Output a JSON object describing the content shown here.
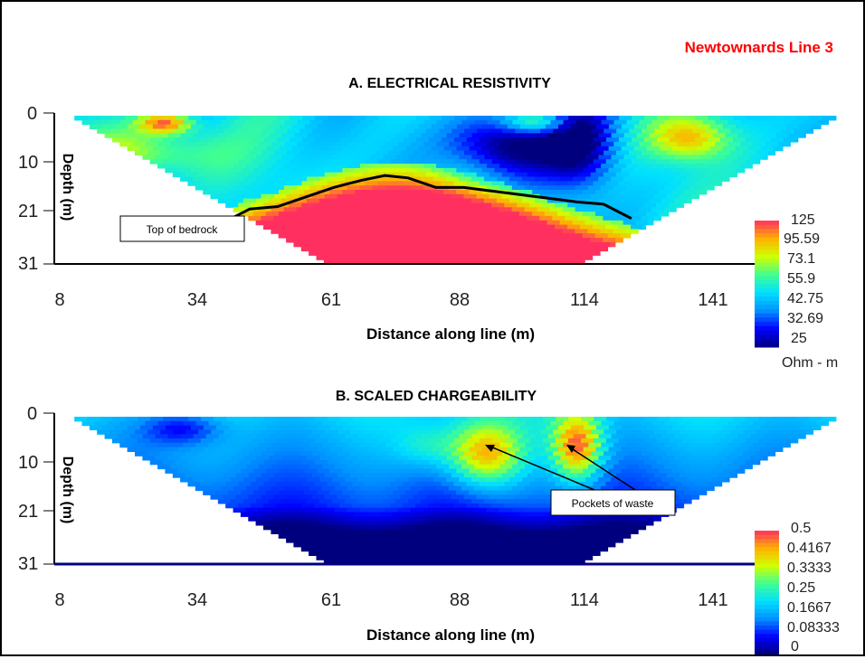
{
  "header": {
    "site_title": "Newtownards  Line 3",
    "site_title_color": "#ff0000"
  },
  "chart_data": [
    {
      "type": "heatmap",
      "title": "A.   ELECTRICAL RESISTIVITY",
      "xlabel": "Distance along line (m)",
      "ylabel": "Depth (m)",
      "x_ticks": [
        "8",
        "34",
        "61",
        "88",
        "114",
        "141"
      ],
      "y_ticks": [
        "0",
        "10",
        "21",
        "31"
      ],
      "xlim": [
        8,
        160
      ],
      "ylim": [
        0,
        31
      ],
      "scale_labels": [
        "125",
        "95.59",
        "73.1",
        "55.9",
        "42.75",
        "32.69",
        "25"
      ],
      "scale_unit": "Ohm - m",
      "annotations": [
        {
          "text": "Top of bedrock",
          "target": [
            46,
            21
          ]
        }
      ],
      "bedrock_line": [
        [
          46,
          21.5
        ],
        [
          50,
          19.5
        ],
        [
          56,
          19
        ],
        [
          62,
          17
        ],
        [
          68,
          15
        ],
        [
          74,
          13.5
        ],
        [
          79,
          12.5
        ],
        [
          84,
          13
        ],
        [
          90,
          15
        ],
        [
          96,
          15
        ],
        [
          104,
          16
        ],
        [
          112,
          17
        ],
        [
          120,
          18
        ],
        [
          126,
          18.5
        ],
        [
          132,
          21.5
        ]
      ]
    },
    {
      "type": "heatmap",
      "title": "B.   SCALED CHARGEABILITY",
      "xlabel": "Distance along line (m)",
      "ylabel": "Depth (m)",
      "x_ticks": [
        "8",
        "34",
        "61",
        "88",
        "114",
        "141"
      ],
      "y_ticks": [
        "0",
        "10",
        "21",
        "31"
      ],
      "xlim": [
        8,
        160
      ],
      "ylim": [
        0,
        31
      ],
      "scale_labels": [
        "0.5",
        "0.4167",
        "0.3333",
        "0.25",
        "0.1667",
        "0.08333",
        "0"
      ],
      "annotations": [
        {
          "text": "Pockets of waste",
          "targets": [
            [
              95,
              7
            ],
            [
              111,
              7
            ]
          ]
        }
      ]
    }
  ],
  "colors": {
    "palette": [
      "#00007f",
      "#0000ff",
      "#0090ff",
      "#00e0ff",
      "#40ff90",
      "#d0ff00",
      "#ffb000",
      "#ff3060"
    ],
    "bedrock_line": "#000000"
  }
}
